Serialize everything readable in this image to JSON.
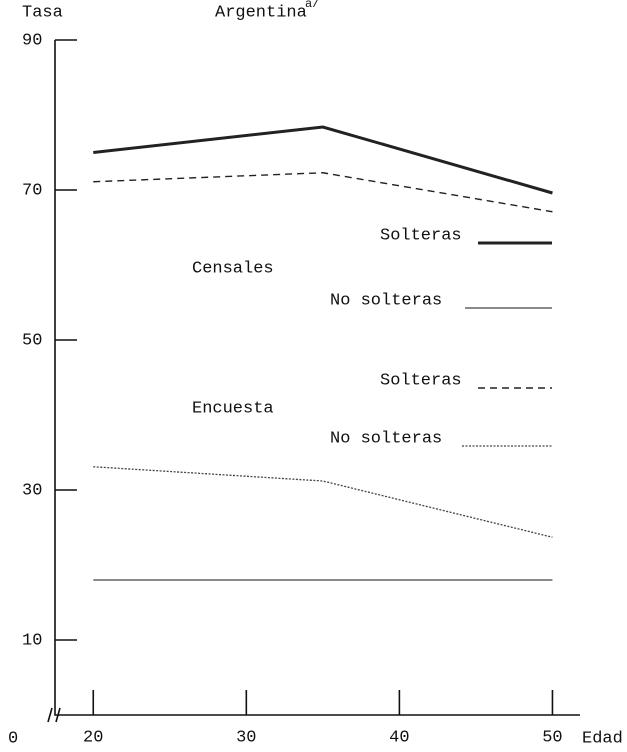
{
  "chart_data": {
    "type": "line",
    "title": "Argentina",
    "title_note": "a/",
    "y_label": "Tasa",
    "x_label": "Edad",
    "origin_label": "0",
    "x": [
      20,
      35,
      50
    ],
    "xlim": [
      17.5,
      51.8
    ],
    "xticks": [
      20,
      30,
      40,
      50
    ],
    "ylim": [
      0,
      90
    ],
    "yticks": [
      10,
      30,
      50,
      70,
      90
    ],
    "legend_groups": [
      "Censales",
      "Encuesta"
    ],
    "series": [
      {
        "name": "Solteras",
        "group": "Censales",
        "style": "thick",
        "color": "#222",
        "values": [
          75,
          78.4,
          69.6
        ]
      },
      {
        "name": "No solteras",
        "group": "Censales",
        "style": "solid",
        "color": "#444",
        "values": [
          18,
          18,
          18
        ]
      },
      {
        "name": "Solteras",
        "group": "Encuesta",
        "style": "dashed",
        "color": "#222",
        "values": [
          71.1,
          72.3,
          67.1
        ]
      },
      {
        "name": "No solteras",
        "group": "Encuesta",
        "style": "dotted",
        "color": "#444",
        "values": [
          33.1,
          31.2,
          23.7
        ]
      }
    ]
  }
}
